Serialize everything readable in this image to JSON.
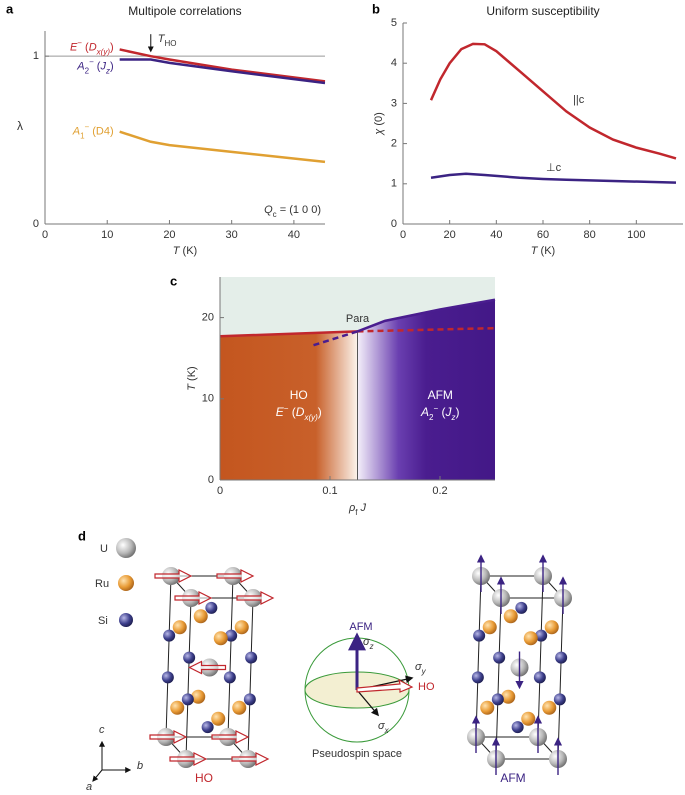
{
  "panel_labels": [
    "a",
    "b",
    "c",
    "d"
  ],
  "chart_data": [
    {
      "type": "line",
      "title": "Multipole correlations",
      "xlabel": [
        "T",
        " (K)"
      ],
      "ylabel": "λ",
      "xlim": [
        0,
        45
      ],
      "ylim": [
        0,
        1.15
      ],
      "xticks": [
        0,
        10,
        20,
        30,
        40
      ],
      "yticks": [
        0,
        1
      ],
      "reference_line": 1,
      "annotation": {
        "text": [
          "T",
          "HO"
        ],
        "x": 17
      },
      "inset_label": [
        "Q",
        "c",
        " = (1 0 0)"
      ],
      "series": [
        {
          "name": [
            "E",
            "−",
            " (",
            "D",
            "x(y)",
            ")"
          ],
          "color": "#c1272d",
          "x": [
            12,
            17,
            20,
            30,
            45
          ],
          "values": [
            1.04,
            1.0,
            0.98,
            0.92,
            0.85
          ]
        },
        {
          "name": [
            "A",
            "2",
            "−",
            " (",
            "J",
            "z",
            ")"
          ],
          "color": "#3b2383",
          "x": [
            12,
            17,
            20,
            30,
            45
          ],
          "values": [
            0.98,
            0.98,
            0.96,
            0.91,
            0.84
          ]
        },
        {
          "name": [
            "A",
            "1",
            "−",
            " (D4)"
          ],
          "color": "#e0a032",
          "x": [
            12,
            17,
            20,
            30,
            45
          ],
          "values": [
            0.55,
            0.49,
            0.47,
            0.43,
            0.37
          ]
        }
      ]
    },
    {
      "type": "line",
      "title": "Uniform susceptibility",
      "xlabel": [
        "T",
        " (K)"
      ],
      "ylabel": [
        "χ",
        " (0)"
      ],
      "xlim": [
        0,
        120
      ],
      "ylim": [
        0,
        5
      ],
      "xticks": [
        0,
        20,
        40,
        60,
        80,
        100
      ],
      "yticks": [
        0,
        1,
        2,
        3,
        4,
        5
      ],
      "series": [
        {
          "name": "||c",
          "color": "#c1272d",
          "x": [
            12,
            16,
            20,
            25,
            30,
            35,
            40,
            50,
            60,
            70,
            80,
            90,
            100,
            110,
            117
          ],
          "values": [
            3.08,
            3.6,
            4.0,
            4.35,
            4.48,
            4.47,
            4.3,
            3.8,
            3.3,
            2.8,
            2.4,
            2.1,
            1.9,
            1.75,
            1.63
          ]
        },
        {
          "name": "⊥c",
          "color": "#3b2383",
          "x": [
            12,
            20,
            27,
            35,
            50,
            60,
            70,
            90,
            117
          ],
          "values": [
            1.15,
            1.22,
            1.25,
            1.22,
            1.15,
            1.12,
            1.1,
            1.07,
            1.03
          ]
        }
      ]
    },
    {
      "type": "phase",
      "xlabel": [
        "ρ",
        "f",
        " J"
      ],
      "ylabel": [
        "T",
        " (K)"
      ],
      "xlim": [
        0,
        0.25
      ],
      "ylim": [
        0,
        25
      ],
      "xticks": [
        0,
        0.1,
        0.2
      ],
      "yticks": [
        0,
        10,
        20
      ],
      "boundary_x": 0.125,
      "regions": [
        {
          "name": "Para",
          "color": "#e4eee9"
        },
        {
          "name": "HO",
          "order": [
            "E",
            "−",
            " (",
            "D",
            "x(y)",
            ")"
          ],
          "color": "#c4561f"
        },
        {
          "name": "AFM",
          "order": [
            "A",
            "2",
            "−",
            " (",
            "J",
            "z",
            ")"
          ],
          "color": "#4a1d8f"
        }
      ],
      "lines": [
        {
          "color": "#c1272d",
          "style": "solid",
          "x": [
            0,
            0.125
          ],
          "values": [
            17.7,
            18.3
          ]
        },
        {
          "color": "#c1272d",
          "style": "dashed",
          "x": [
            0.125,
            0.25
          ],
          "values": [
            18.3,
            18.7
          ]
        },
        {
          "color": "#4a1d8f",
          "style": "solid",
          "x": [
            0.125,
            0.15,
            0.2,
            0.25
          ],
          "values": [
            18.3,
            19.6,
            21,
            22.2
          ]
        },
        {
          "color": "#4a1d8f",
          "style": "dashed",
          "x": [
            0.085,
            0.125
          ],
          "values": [
            16.6,
            18.3
          ]
        }
      ]
    }
  ],
  "diagram": {
    "legend": [
      "U",
      "Ru",
      "Si"
    ],
    "afm": "AFM",
    "ho": "HO",
    "sigma_z": [
      "σ",
      "z"
    ],
    "sigma_y": [
      "σ",
      "y"
    ],
    "sigma_x": [
      "σ",
      "x"
    ],
    "caption": "Pseudospin space",
    "axes": [
      "c",
      "b",
      "a"
    ],
    "structures": [
      "HO",
      "AFM"
    ]
  }
}
